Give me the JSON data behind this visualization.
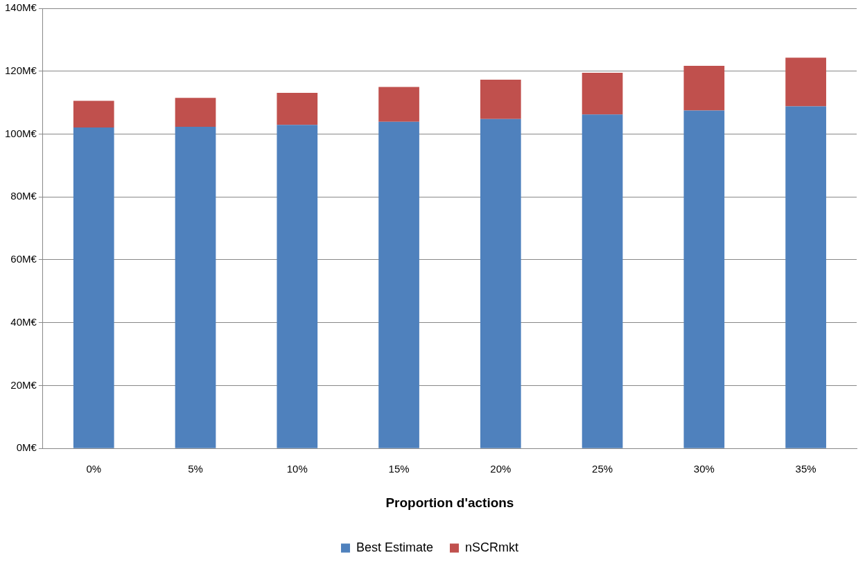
{
  "chart_data": {
    "type": "bar",
    "stacked": true,
    "xlabel": "Proportion d'actions",
    "categories": [
      "0%",
      "5%",
      "10%",
      "15%",
      "20%",
      "25%",
      "30%",
      "35%"
    ],
    "series": [
      {
        "name": "Best Estimate",
        "color": "#4f81bd",
        "values": [
          102.1,
          102.3,
          102.9,
          103.9,
          104.8,
          106.2,
          107.5,
          108.8
        ]
      },
      {
        "name": "nSCRmkt",
        "color": "#c0504d",
        "values": [
          8.5,
          9.2,
          10.2,
          11.1,
          12.5,
          13.3,
          14.2,
          15.5
        ]
      }
    ],
    "ylim": [
      0,
      140
    ],
    "yticks": [
      {
        "value": 0,
        "label": "0M€"
      },
      {
        "value": 20,
        "label": "20M€"
      },
      {
        "value": 40,
        "label": "40M€"
      },
      {
        "value": 60,
        "label": "60M€"
      },
      {
        "value": 80,
        "label": "80M€"
      },
      {
        "value": 100,
        "label": "100M€"
      },
      {
        "value": 120,
        "label": "120M€"
      },
      {
        "value": 140,
        "label": "140M€"
      }
    ],
    "grid": "y",
    "legend": "bottom"
  }
}
